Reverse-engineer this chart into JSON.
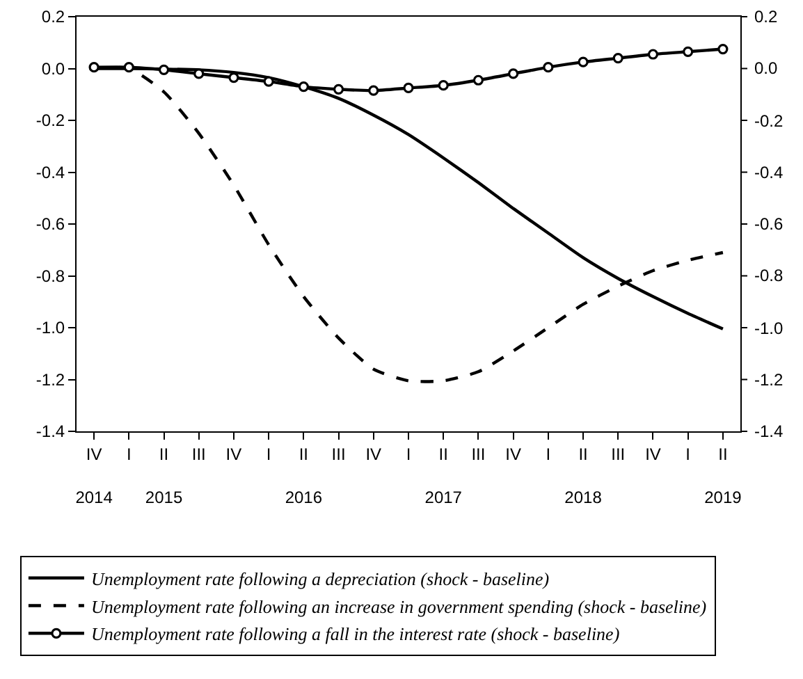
{
  "chart_data": {
    "type": "line",
    "categories": [
      "IV\n2014",
      "I",
      "II\n2015",
      "III",
      "IV",
      "I",
      "II\n2016",
      "III",
      "IV",
      "I",
      "II\n2017",
      "III",
      "IV",
      "I",
      "II\n2018",
      "III",
      "IV",
      "I",
      "II\n2019"
    ],
    "ylim": [
      -1.4,
      0.2
    ],
    "yticks": [
      0.2,
      {
        "value": 0,
        "label": "0.0"
      },
      -0.2,
      -0.4,
      -0.6,
      -0.8,
      {
        "value": -1,
        "label": "-1.0"
      },
      -1.2,
      -1.4
    ],
    "y2lim": [
      -1.4,
      0.2
    ],
    "y2ticks": [
      0.2,
      {
        "value": 0,
        "label": "0.0"
      },
      -0.2,
      -0.4,
      -0.6,
      -0.8,
      {
        "value": -1,
        "label": "-1.0"
      },
      -1.2,
      -1.4
    ],
    "legend": "bottom",
    "series": [
      {
        "name": "Unemployment rate following a depreciation (shock - baseline)",
        "color": "#000000",
        "line_style": "solid",
        "marker": "none",
        "values": [
          0,
          0,
          -0.002,
          -0.005,
          -0.015,
          -0.035,
          -0.07,
          -0.115,
          -0.18,
          -0.255,
          -0.345,
          -0.44,
          -0.54,
          -0.635,
          -0.73,
          -0.81,
          -0.88,
          -0.945,
          -1.005
        ]
      },
      {
        "name": "Unemployment rate following an increase in government spending (shock - baseline)",
        "color": "#000000",
        "line_style": "dashed",
        "marker": "none",
        "values": [
          0,
          0,
          -0.09,
          -0.25,
          -0.45,
          -0.68,
          -0.88,
          -1.04,
          -1.16,
          -1.205,
          -1.205,
          -1.17,
          -1.09,
          -1.0,
          -0.91,
          -0.84,
          -0.78,
          -0.74,
          -0.71
        ]
      },
      {
        "name": "Unemployment rate following a fall in the interest rate (shock - baseline)",
        "color": "#000000",
        "line_style": "solid",
        "marker": "circle",
        "values": [
          0.005,
          0.005,
          -0.005,
          -0.02,
          -0.035,
          -0.05,
          -0.07,
          -0.08,
          -0.085,
          -0.075,
          -0.065,
          -0.045,
          -0.02,
          0.005,
          0.025,
          0.04,
          0.055,
          0.065,
          0.075
        ]
      }
    ]
  }
}
